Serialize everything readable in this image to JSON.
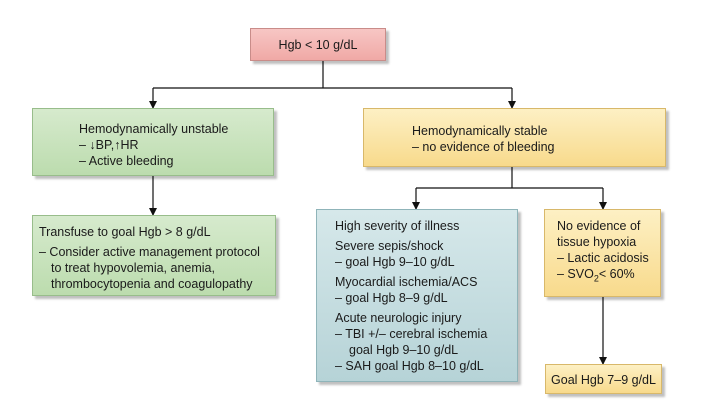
{
  "root": {
    "text": "Hgb < 10 g/dL"
  },
  "unstable": {
    "title": "Hemodynamically unstable",
    "lines": [
      "– ↓BP,↑HR",
      "– Active bleeding"
    ]
  },
  "stable": {
    "title": "Hemodynamically stable",
    "lines": [
      "– no evidence of bleeding"
    ]
  },
  "transfuse": {
    "title": "Transfuse to goal Hgb > 8 g/dL",
    "lines": [
      "– Consider active management protocol",
      "to treat hypovolemia, anemia,",
      "thrombocytopenia and coagulopathy"
    ]
  },
  "high_severity": {
    "title": "High severity of illness",
    "sepsis": [
      "Severe sepis/shock",
      "– goal Hgb 9–10 g/dL"
    ],
    "ischemia": [
      "Myocardial ischemia/ACS",
      "– goal Hgb 8–9 g/dL"
    ],
    "neuro": [
      "Acute neurologic injury",
      "– TBI +/– cerebral ischemia",
      "goal Hgb 9–10 g/dL",
      "– SAH goal Hgb 8–10 g/dL"
    ]
  },
  "no_hypoxia": {
    "title_lines": [
      "No evidence of",
      "tissue hypoxia"
    ],
    "lines": [
      "– Lactic acidosis"
    ],
    "svo2_prefix": "– SVO",
    "svo2_sub": "2",
    "svo2_suffix": "< 60%"
  },
  "goal": {
    "text": "Goal Hgb 7–9 g/dL"
  }
}
